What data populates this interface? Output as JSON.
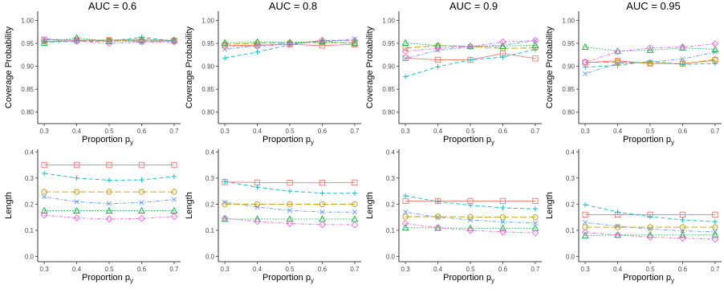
{
  "figure": {
    "series_styles": [
      {
        "color": "#F8766D",
        "marker": "square",
        "dash": "solid"
      },
      {
        "color": "#00BFC4",
        "marker": "plus",
        "dash": "dashed"
      },
      {
        "color": "#619CFF",
        "marker": "x",
        "dash": "dotdash"
      },
      {
        "color": "#C49A00",
        "marker": "circle",
        "dash": "longdash"
      },
      {
        "color": "#00BA38",
        "marker": "triangle",
        "dash": "dotted"
      },
      {
        "color": "#F564E3",
        "marker": "diamond",
        "dash": "twodash"
      }
    ]
  },
  "chart_data": [
    {
      "type": "line",
      "row": 0,
      "col": 0,
      "title": "AUC = 0.6",
      "xlabel": "Proportion p",
      "xlabel_sub": "y",
      "ylabel": "Coverage Probability",
      "x": [
        0.3,
        0.4,
        0.5,
        0.6,
        0.7
      ],
      "xticks": [
        "0.3",
        "0.4",
        "0.5",
        "0.6",
        "0.7"
      ],
      "ylim": [
        0.775,
        1.02
      ],
      "yticks": [
        0.8,
        0.85,
        0.9,
        0.95,
        1.0
      ],
      "yticklabels": [
        "0.80",
        "0.85",
        "0.90",
        "0.95",
        "1.00"
      ],
      "series": [
        {
          "values": [
            0.958,
            0.957,
            0.957,
            0.958,
            0.956
          ]
        },
        {
          "values": [
            0.953,
            0.954,
            0.955,
            0.963,
            0.955
          ]
        },
        {
          "values": [
            0.96,
            0.956,
            0.957,
            0.953,
            0.956
          ]
        },
        {
          "values": [
            0.954,
            0.955,
            0.956,
            0.955,
            0.955
          ]
        },
        {
          "values": [
            0.951,
            0.962,
            0.954,
            0.957,
            0.957
          ]
        },
        {
          "values": [
            0.955,
            0.955,
            0.95,
            0.953,
            0.953
          ]
        }
      ]
    },
    {
      "type": "line",
      "row": 0,
      "col": 1,
      "title": "AUC = 0.8",
      "xlabel": "Proportion p",
      "xlabel_sub": "y",
      "ylabel": "Coverage Probability",
      "x": [
        0.3,
        0.4,
        0.5,
        0.6,
        0.7
      ],
      "xticks": [
        "0.3",
        "0.4",
        "0.5",
        "0.6",
        "0.7"
      ],
      "ylim": [
        0.775,
        1.02
      ],
      "yticks": [
        0.8,
        0.85,
        0.9,
        0.95,
        1.0
      ],
      "yticklabels": [
        "0.80",
        "0.85",
        "0.90",
        "0.95",
        "1.00"
      ],
      "series": [
        {
          "values": [
            0.945,
            0.946,
            0.948,
            0.945,
            0.948
          ]
        },
        {
          "values": [
            0.918,
            0.931,
            0.947,
            0.956,
            0.956
          ]
        },
        {
          "values": [
            0.937,
            0.945,
            0.95,
            0.953,
            0.96
          ]
        },
        {
          "values": [
            0.948,
            0.95,
            0.951,
            0.952,
            0.951
          ]
        },
        {
          "values": [
            0.951,
            0.953,
            0.952,
            0.954,
            0.95
          ]
        },
        {
          "values": [
            0.944,
            0.944,
            0.948,
            0.957,
            0.956
          ]
        }
      ]
    },
    {
      "type": "line",
      "row": 0,
      "col": 2,
      "title": "AUC = 0.9",
      "xlabel": "Proportion p",
      "xlabel_sub": "y",
      "ylabel": "Coverage Probability",
      "x": [
        0.3,
        0.4,
        0.5,
        0.6,
        0.7
      ],
      "xticks": [
        "0.3",
        "0.4",
        "0.5",
        "0.6",
        "0.7"
      ],
      "ylim": [
        0.775,
        1.02
      ],
      "yticks": [
        0.8,
        0.85,
        0.9,
        0.95,
        1.0
      ],
      "yticklabels": [
        "0.80",
        "0.85",
        "0.90",
        "0.95",
        "1.00"
      ],
      "series": [
        {
          "values": [
            0.918,
            0.914,
            0.914,
            0.928,
            0.917
          ]
        },
        {
          "values": [
            0.877,
            0.899,
            0.914,
            0.92,
            0.937
          ]
        },
        {
          "values": [
            0.917,
            0.935,
            0.942,
            0.946,
            0.956
          ]
        },
        {
          "values": [
            0.94,
            0.945,
            0.943,
            0.939,
            0.94
          ]
        },
        {
          "values": [
            0.951,
            0.945,
            0.944,
            0.944,
            0.946
          ]
        },
        {
          "values": [
            0.933,
            0.939,
            0.943,
            0.953,
            0.956
          ]
        }
      ]
    },
    {
      "type": "line",
      "row": 0,
      "col": 3,
      "title": "AUC = 0.95",
      "xlabel": "Proportion p",
      "xlabel_sub": "y",
      "ylabel": "Coverage Probability",
      "x": [
        0.3,
        0.4,
        0.5,
        0.6,
        0.7
      ],
      "xticks": [
        "0.3",
        "0.4",
        "0.5",
        "0.6",
        "0.7"
      ],
      "ylim": [
        0.775,
        1.02
      ],
      "yticks": [
        0.8,
        0.85,
        0.9,
        0.95,
        1.0
      ],
      "yticklabels": [
        "0.80",
        "0.85",
        "0.90",
        "0.95",
        "1.00"
      ],
      "series": [
        {
          "values": [
            0.908,
            0.912,
            0.906,
            0.906,
            0.913
          ]
        },
        {
          "values": [
            0.898,
            0.902,
            0.911,
            0.904,
            0.906
          ]
        },
        {
          "values": [
            0.884,
            0.906,
            0.909,
            0.916,
            0.931
          ]
        },
        {
          "values": [
            0.909,
            0.909,
            0.907,
            0.905,
            0.915
          ]
        },
        {
          "values": [
            0.942,
            0.933,
            0.935,
            0.94,
            0.937
          ]
        },
        {
          "values": [
            0.909,
            0.932,
            0.94,
            0.942,
            0.949
          ]
        }
      ]
    },
    {
      "type": "line",
      "row": 1,
      "col": 0,
      "title": "",
      "xlabel": "Proportion p",
      "xlabel_sub": "y",
      "ylabel": "Length",
      "x": [
        0.3,
        0.4,
        0.5,
        0.6,
        0.7
      ],
      "xticks": [
        "0.3",
        "0.4",
        "0.5",
        "0.6",
        "0.7"
      ],
      "ylim": [
        -0.02,
        0.41
      ],
      "yticks": [
        0.0,
        0.1,
        0.2,
        0.3,
        0.4
      ],
      "yticklabels": [
        "0.0",
        "0.1",
        "0.2",
        "0.3",
        "0.4"
      ],
      "series": [
        {
          "values": [
            0.35,
            0.35,
            0.35,
            0.35,
            0.35
          ]
        },
        {
          "values": [
            0.318,
            0.3,
            0.292,
            0.293,
            0.306
          ]
        },
        {
          "values": [
            0.228,
            0.209,
            0.202,
            0.206,
            0.218
          ]
        },
        {
          "values": [
            0.247,
            0.247,
            0.247,
            0.247,
            0.247
          ]
        },
        {
          "values": [
            0.175,
            0.175,
            0.175,
            0.175,
            0.175
          ]
        },
        {
          "values": [
            0.158,
            0.147,
            0.143,
            0.145,
            0.153
          ]
        }
      ]
    },
    {
      "type": "line",
      "row": 1,
      "col": 1,
      "title": "",
      "xlabel": "Proportion p",
      "xlabel_sub": "y",
      "ylabel": "Length",
      "x": [
        0.3,
        0.4,
        0.5,
        0.6,
        0.7
      ],
      "xticks": [
        "0.3",
        "0.4",
        "0.5",
        "0.6",
        "0.7"
      ],
      "ylim": [
        -0.02,
        0.41
      ],
      "yticks": [
        0.0,
        0.1,
        0.2,
        0.3,
        0.4
      ],
      "yticklabels": [
        "0.0",
        "0.1",
        "0.2",
        "0.3",
        "0.4"
      ],
      "series": [
        {
          "values": [
            0.285,
            0.283,
            0.282,
            0.282,
            0.283
          ]
        },
        {
          "values": [
            0.287,
            0.265,
            0.25,
            0.242,
            0.242
          ]
        },
        {
          "values": [
            0.207,
            0.189,
            0.176,
            0.17,
            0.17
          ]
        },
        {
          "values": [
            0.2,
            0.2,
            0.2,
            0.2,
            0.2
          ]
        },
        {
          "values": [
            0.143,
            0.143,
            0.143,
            0.143,
            0.143
          ]
        },
        {
          "values": [
            0.146,
            0.134,
            0.126,
            0.122,
            0.121
          ]
        }
      ]
    },
    {
      "type": "line",
      "row": 1,
      "col": 2,
      "title": "",
      "xlabel": "Proportion p",
      "xlabel_sub": "y",
      "ylabel": "Length",
      "x": [
        0.3,
        0.4,
        0.5,
        0.6,
        0.7
      ],
      "xticks": [
        "0.3",
        "0.4",
        "0.5",
        "0.6",
        "0.7"
      ],
      "ylim": [
        -0.02,
        0.41
      ],
      "yticks": [
        0.0,
        0.1,
        0.2,
        0.3,
        0.4
      ],
      "yticklabels": [
        "0.0",
        "0.1",
        "0.2",
        "0.3",
        "0.4"
      ],
      "series": [
        {
          "values": [
            0.212,
            0.212,
            0.212,
            0.212,
            0.212
          ]
        },
        {
          "values": [
            0.232,
            0.21,
            0.196,
            0.186,
            0.182
          ]
        },
        {
          "values": [
            0.17,
            0.15,
            0.14,
            0.132,
            0.128
          ]
        },
        {
          "values": [
            0.152,
            0.152,
            0.151,
            0.15,
            0.15
          ]
        },
        {
          "values": [
            0.11,
            0.109,
            0.108,
            0.108,
            0.108
          ]
        },
        {
          "values": [
            0.126,
            0.11,
            0.1,
            0.094,
            0.09
          ]
        }
      ]
    },
    {
      "type": "line",
      "row": 1,
      "col": 3,
      "title": "",
      "xlabel": "Proportion p",
      "xlabel_sub": "y",
      "ylabel": "Length",
      "x": [
        0.3,
        0.4,
        0.5,
        0.6,
        0.7
      ],
      "xticks": [
        "0.3",
        "0.4",
        "0.5",
        "0.6",
        "0.7"
      ],
      "ylim": [
        -0.02,
        0.41
      ],
      "yticks": [
        0.0,
        0.1,
        0.2,
        0.3,
        0.4
      ],
      "yticklabels": [
        "0.0",
        "0.1",
        "0.2",
        "0.3",
        "0.4"
      ],
      "series": [
        {
          "values": [
            0.16,
            0.16,
            0.16,
            0.16,
            0.16
          ]
        },
        {
          "values": [
            0.198,
            0.17,
            0.152,
            0.14,
            0.133
          ]
        },
        {
          "values": [
            0.13,
            0.116,
            0.105,
            0.098,
            0.094
          ]
        },
        {
          "values": [
            0.112,
            0.112,
            0.112,
            0.112,
            0.112
          ]
        },
        {
          "values": [
            0.08,
            0.082,
            0.082,
            0.082,
            0.082
          ]
        },
        {
          "values": [
            0.092,
            0.082,
            0.074,
            0.07,
            0.066
          ]
        }
      ]
    }
  ]
}
